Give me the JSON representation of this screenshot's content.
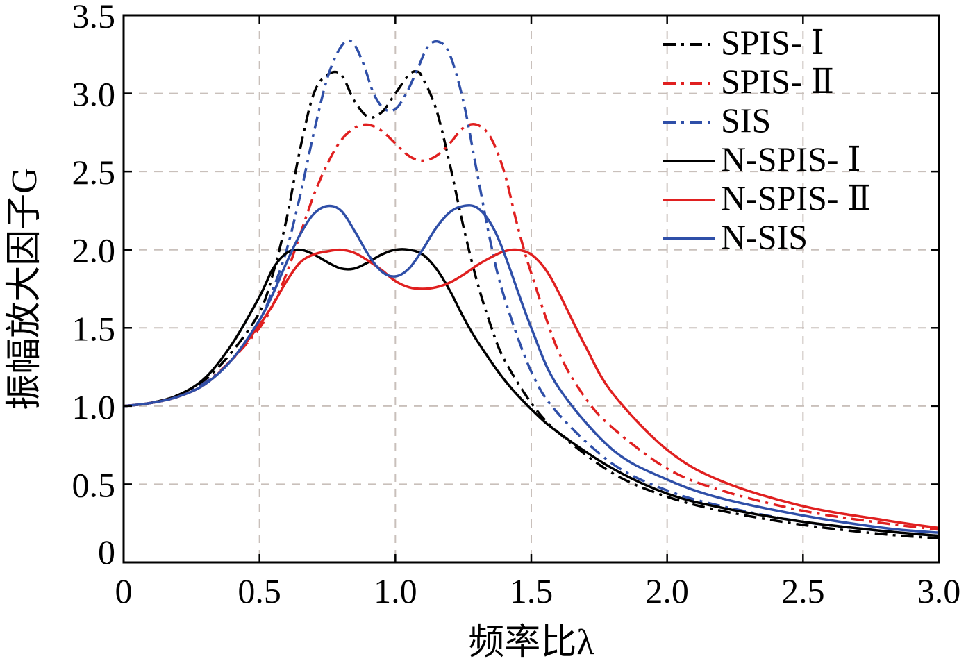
{
  "chart_data": {
    "type": "line",
    "title": "",
    "xlabel": "频率比λ",
    "ylabel": "振幅放大因子G",
    "xlim": [
      0,
      3.0
    ],
    "ylim": [
      0,
      3.5
    ],
    "xticks": [
      "0",
      "0.5",
      "1.0",
      "1.5",
      "2.0",
      "2.5",
      "3.0"
    ],
    "yticks": [
      "0",
      "0.5",
      "1.0",
      "1.5",
      "2.0",
      "2.5",
      "3.0",
      "3.5"
    ],
    "grid": true,
    "legend_position": "top-right",
    "series": [
      {
        "name": "SPIS- Ⅰ",
        "color": "#000000",
        "style": "dash-dot",
        "x": [
          0,
          0.1,
          0.2,
          0.3,
          0.4,
          0.5,
          0.55,
          0.6,
          0.65,
          0.7,
          0.75,
          0.8,
          0.85,
          0.9,
          0.95,
          1.0,
          1.05,
          1.08,
          1.1,
          1.15,
          1.2,
          1.25,
          1.3,
          1.35,
          1.4,
          1.5,
          1.6,
          1.8,
          2.0,
          2.2,
          2.5,
          2.8,
          3.0
        ],
        "y": [
          1.0,
          1.02,
          1.07,
          1.17,
          1.35,
          1.6,
          1.85,
          2.2,
          2.65,
          3.0,
          3.12,
          3.12,
          2.95,
          2.85,
          2.88,
          3.0,
          3.12,
          3.14,
          3.1,
          2.9,
          2.55,
          2.15,
          1.8,
          1.52,
          1.3,
          1.02,
          0.83,
          0.57,
          0.42,
          0.33,
          0.24,
          0.18,
          0.155
        ]
      },
      {
        "name": "SPIS- Ⅱ",
        "color": "#e02020",
        "style": "dash-dot",
        "x": [
          0,
          0.1,
          0.2,
          0.3,
          0.4,
          0.5,
          0.55,
          0.6,
          0.65,
          0.7,
          0.75,
          0.8,
          0.85,
          0.9,
          0.95,
          1.0,
          1.05,
          1.1,
          1.15,
          1.2,
          1.25,
          1.3,
          1.35,
          1.4,
          1.45,
          1.5,
          1.6,
          1.7,
          1.8,
          2.0,
          2.2,
          2.5,
          2.8,
          3.0
        ],
        "y": [
          1.0,
          1.02,
          1.06,
          1.15,
          1.3,
          1.5,
          1.65,
          1.85,
          2.1,
          2.35,
          2.55,
          2.7,
          2.78,
          2.8,
          2.76,
          2.68,
          2.6,
          2.57,
          2.6,
          2.68,
          2.78,
          2.8,
          2.72,
          2.5,
          2.15,
          1.85,
          1.35,
          1.05,
          0.86,
          0.6,
          0.46,
          0.33,
          0.25,
          0.21
        ]
      },
      {
        "name": "SIS",
        "color": "#2f4fa8",
        "style": "dash-dot",
        "x": [
          0,
          0.1,
          0.2,
          0.3,
          0.4,
          0.5,
          0.55,
          0.6,
          0.65,
          0.7,
          0.75,
          0.8,
          0.84,
          0.88,
          0.92,
          0.96,
          1.0,
          1.04,
          1.08,
          1.12,
          1.16,
          1.2,
          1.25,
          1.3,
          1.35,
          1.4,
          1.5,
          1.6,
          1.8,
          2.0,
          2.2,
          2.5,
          2.8,
          3.0
        ],
        "y": [
          1.0,
          1.02,
          1.06,
          1.15,
          1.3,
          1.55,
          1.75,
          2.0,
          2.35,
          2.75,
          3.1,
          3.3,
          3.33,
          3.2,
          3.0,
          2.9,
          2.9,
          3.0,
          3.15,
          3.3,
          3.33,
          3.25,
          2.95,
          2.5,
          2.05,
          1.7,
          1.22,
          0.95,
          0.63,
          0.46,
          0.36,
          0.26,
          0.2,
          0.17
        ]
      },
      {
        "name": "N-SPIS- Ⅰ",
        "color": "#000000",
        "style": "solid",
        "x": [
          0,
          0.1,
          0.2,
          0.3,
          0.4,
          0.5,
          0.55,
          0.6,
          0.65,
          0.7,
          0.75,
          0.8,
          0.85,
          0.9,
          0.95,
          1.0,
          1.05,
          1.1,
          1.15,
          1.2,
          1.25,
          1.3,
          1.4,
          1.5,
          1.6,
          1.8,
          2.0,
          2.2,
          2.5,
          2.8,
          3.0
        ],
        "y": [
          1.0,
          1.02,
          1.07,
          1.18,
          1.4,
          1.7,
          1.88,
          1.98,
          2.0,
          1.97,
          1.92,
          1.88,
          1.88,
          1.92,
          1.97,
          2.0,
          2.0,
          1.97,
          1.88,
          1.74,
          1.57,
          1.42,
          1.17,
          0.98,
          0.83,
          0.6,
          0.44,
          0.35,
          0.26,
          0.2,
          0.17
        ]
      },
      {
        "name": "N-SPIS- Ⅱ",
        "color": "#e02020",
        "style": "solid",
        "x": [
          0,
          0.1,
          0.2,
          0.3,
          0.4,
          0.5,
          0.55,
          0.6,
          0.65,
          0.7,
          0.75,
          0.8,
          0.85,
          0.9,
          0.95,
          1.0,
          1.05,
          1.1,
          1.15,
          1.2,
          1.25,
          1.3,
          1.35,
          1.4,
          1.45,
          1.5,
          1.55,
          1.6,
          1.7,
          1.8,
          2.0,
          2.2,
          2.5,
          2.8,
          3.0
        ],
        "y": [
          1.0,
          1.02,
          1.06,
          1.14,
          1.3,
          1.52,
          1.65,
          1.8,
          1.92,
          1.97,
          1.99,
          2.0,
          1.98,
          1.93,
          1.87,
          1.8,
          1.76,
          1.75,
          1.76,
          1.79,
          1.84,
          1.9,
          1.95,
          1.99,
          2.0,
          1.97,
          1.88,
          1.73,
          1.38,
          1.08,
          0.72,
          0.52,
          0.36,
          0.27,
          0.22
        ]
      },
      {
        "name": "N-SIS",
        "color": "#2f4fa8",
        "style": "solid",
        "x": [
          0,
          0.1,
          0.2,
          0.3,
          0.4,
          0.5,
          0.55,
          0.6,
          0.65,
          0.7,
          0.75,
          0.8,
          0.85,
          0.9,
          0.95,
          1.0,
          1.05,
          1.1,
          1.15,
          1.2,
          1.25,
          1.3,
          1.35,
          1.4,
          1.5,
          1.6,
          1.8,
          2.0,
          2.2,
          2.5,
          2.8,
          3.0
        ],
        "y": [
          1.0,
          1.02,
          1.06,
          1.14,
          1.3,
          1.55,
          1.72,
          1.92,
          2.1,
          2.23,
          2.28,
          2.25,
          2.12,
          1.97,
          1.86,
          1.83,
          1.88,
          2.0,
          2.14,
          2.24,
          2.28,
          2.27,
          2.17,
          1.98,
          1.5,
          1.12,
          0.72,
          0.53,
          0.41,
          0.3,
          0.22,
          0.19
        ]
      }
    ]
  }
}
